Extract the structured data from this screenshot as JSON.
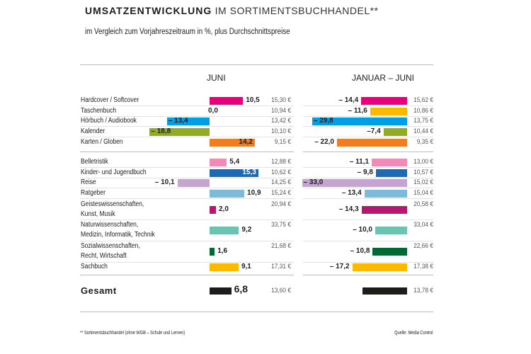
{
  "title_bold": "UMSATZENTWICKLUNG",
  "title_regular": " IM SORTIMENTSBUCHHANDEL**",
  "subtitle": "im Vergleich zum Vorjahreszeitraum in %, plus Durchschnittspreise",
  "footnote": "** Sortimentsbuchhandel (ohne WGB – Schule und Lernen)",
  "source": "Quelle: Media Control",
  "chart_data": {
    "type": "bar",
    "orientation": "horizontal",
    "title": "UMSATZENTWICKLUNG IM SORTIMENTSBUCHHANDEL**",
    "subtitle": "im Vergleich zum Vorjahreszeitraum in %, plus Durchschnittspreise",
    "panels": [
      "JUNI",
      "JANUAR – JUNI"
    ],
    "categories": [
      "Hardcover / Softcover",
      "Taschenbuch",
      "Hörbuch / Audiobook",
      "Kalender",
      "Karten / Globen",
      "Belletristik",
      "Kinder- und Jugendbuch",
      "Reise",
      "Ratgeber",
      "Geisteswissenschaften,\nKunst, Musik",
      "Naturwissenschaften,\nMedizin, Informatik, Technik",
      "Sozialwissenschaften,\nRecht, Wirtschaft",
      "Sachbuch",
      "Gesamt"
    ],
    "series": [
      {
        "name": "JUNI",
        "values": [
          10.5,
          0.0,
          -13.4,
          -18.8,
          14.2,
          5.4,
          15.3,
          -10.1,
          10.9,
          2.0,
          9.2,
          1.6,
          9.1,
          6.8
        ],
        "labels": [
          "10,5",
          "0,0",
          "– 13,4",
          "– 18,8",
          "14,2",
          "5,4",
          "15,3",
          "– 10,1",
          "10,9",
          "2,0",
          "9,2",
          "1,6",
          "9,1",
          "6,8"
        ],
        "prices": [
          "15,30 €",
          "10,94 €",
          "13,42 €",
          "10,10 €",
          "9,15 €",
          "12,88 €",
          "10,62 €",
          "14,25 €",
          "15,24 €",
          "20,94 €",
          "33,75 €",
          "21,68 €",
          "17,31 €",
          "13,60 €"
        ]
      },
      {
        "name": "JANUAR – JUNI",
        "values": [
          -14.4,
          -11.6,
          -29.8,
          -7.4,
          -22.0,
          -11.1,
          -9.8,
          -33.0,
          -13.4,
          -14.3,
          -10.0,
          -10.8,
          -17.2,
          -14.1
        ],
        "labels": [
          "– 14,4",
          "– 11,6",
          "– 29,8",
          "–7,4",
          "– 22,0",
          "– 11,1",
          "– 9,8",
          "– 33,0",
          "– 13,4",
          "– 14,3",
          "– 10,0",
          "– 10,8",
          "– 17,2",
          ""
        ],
        "prices": [
          "15,62 €",
          "10,86 €",
          "13,75 €",
          "10,44 €",
          "9,35 €",
          "13,00 €",
          "10,57 €",
          "15,02 €",
          "15,04 €",
          "20,58 €",
          "33,04 €",
          "22,66 €",
          "17,38 €",
          "13,78 €"
        ]
      }
    ],
    "colors": [
      "#e6007e",
      "#fbb900",
      "#009fe3",
      "#8fac22",
      "#f07d21",
      "#f08bb8",
      "#1d6ab4",
      "#c6a3d0",
      "#7fbbd9",
      "#b9166f",
      "#6cc3b0",
      "#006a35",
      "#fbb900",
      "#1d1d1b"
    ],
    "units": "%"
  }
}
